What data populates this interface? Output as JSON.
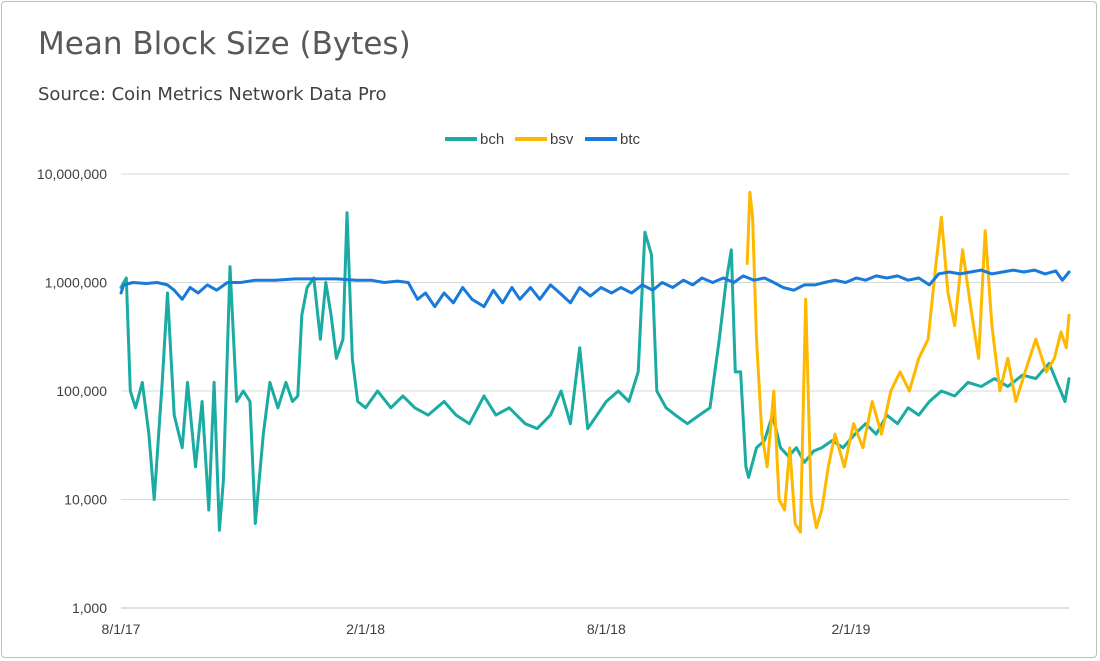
{
  "chart_data": {
    "type": "line",
    "title": "Mean Block Size (Bytes)",
    "subtitle": "Source: Coin Metrics Network Data Pro",
    "xlabel": "",
    "ylabel": "",
    "y_scale": "log",
    "ylim": [
      1000,
      10000000
    ],
    "xlim": [
      "2017-08-01",
      "2019-07-15"
    ],
    "y_ticks": [
      1000,
      10000,
      100000,
      1000000,
      10000000
    ],
    "y_tick_labels": [
      "1,000",
      "10,000",
      "100,000",
      "1,000,000",
      "10,000,000"
    ],
    "x_ticks": [
      "2017-08-01",
      "2018-02-01",
      "2018-08-01",
      "2019-02-01"
    ],
    "x_tick_labels": [
      "8/1/17",
      "2/1/18",
      "8/1/18",
      "2/1/19"
    ],
    "grid": "horizontal",
    "legend": "top-center",
    "series": [
      {
        "name": "bch",
        "color": "#1aaba3",
        "points": [
          [
            "2017-08-01",
            900000
          ],
          [
            "2017-08-05",
            1100000
          ],
          [
            "2017-08-08",
            100000
          ],
          [
            "2017-08-12",
            70000
          ],
          [
            "2017-08-17",
            120000
          ],
          [
            "2017-08-22",
            40000
          ],
          [
            "2017-08-26",
            10000
          ],
          [
            "2017-09-01",
            120000
          ],
          [
            "2017-09-05",
            800000
          ],
          [
            "2017-09-10",
            60000
          ],
          [
            "2017-09-16",
            30000
          ],
          [
            "2017-09-20",
            120000
          ],
          [
            "2017-09-26",
            20000
          ],
          [
            "2017-10-01",
            80000
          ],
          [
            "2017-10-06",
            8000
          ],
          [
            "2017-10-10",
            120000
          ],
          [
            "2017-10-14",
            5200
          ],
          [
            "2017-10-17",
            15000
          ],
          [
            "2017-10-22",
            1400000
          ],
          [
            "2017-10-27",
            80000
          ],
          [
            "2017-11-01",
            100000
          ],
          [
            "2017-11-06",
            80000
          ],
          [
            "2017-11-10",
            6000
          ],
          [
            "2017-11-16",
            40000
          ],
          [
            "2017-11-21",
            120000
          ],
          [
            "2017-11-27",
            70000
          ],
          [
            "2017-12-03",
            120000
          ],
          [
            "2017-12-08",
            80000
          ],
          [
            "2017-12-12",
            90000
          ],
          [
            "2017-12-15",
            500000
          ],
          [
            "2017-12-19",
            900000
          ],
          [
            "2017-12-24",
            1100000
          ],
          [
            "2017-12-29",
            300000
          ],
          [
            "2018-01-02",
            1000000
          ],
          [
            "2018-01-06",
            500000
          ],
          [
            "2018-01-10",
            200000
          ],
          [
            "2018-01-15",
            300000
          ],
          [
            "2018-01-18",
            4400000
          ],
          [
            "2018-01-22",
            200000
          ],
          [
            "2018-01-26",
            80000
          ],
          [
            "2018-02-01",
            70000
          ],
          [
            "2018-02-10",
            100000
          ],
          [
            "2018-02-20",
            70000
          ],
          [
            "2018-03-01",
            90000
          ],
          [
            "2018-03-10",
            70000
          ],
          [
            "2018-03-20",
            60000
          ],
          [
            "2018-04-01",
            80000
          ],
          [
            "2018-04-10",
            60000
          ],
          [
            "2018-04-20",
            50000
          ],
          [
            "2018-05-01",
            90000
          ],
          [
            "2018-05-10",
            60000
          ],
          [
            "2018-05-20",
            70000
          ],
          [
            "2018-06-01",
            50000
          ],
          [
            "2018-06-10",
            45000
          ],
          [
            "2018-06-20",
            60000
          ],
          [
            "2018-06-28",
            100000
          ],
          [
            "2018-07-05",
            50000
          ],
          [
            "2018-07-12",
            250000
          ],
          [
            "2018-07-18",
            45000
          ],
          [
            "2018-07-25",
            60000
          ],
          [
            "2018-08-01",
            80000
          ],
          [
            "2018-08-10",
            100000
          ],
          [
            "2018-08-18",
            80000
          ],
          [
            "2018-08-25",
            150000
          ],
          [
            "2018-08-30",
            2900000
          ],
          [
            "2018-09-04",
            1800000
          ],
          [
            "2018-09-08",
            100000
          ],
          [
            "2018-09-15",
            70000
          ],
          [
            "2018-09-22",
            60000
          ],
          [
            "2018-10-01",
            50000
          ],
          [
            "2018-10-10",
            60000
          ],
          [
            "2018-10-18",
            70000
          ],
          [
            "2018-10-25",
            300000
          ],
          [
            "2018-10-30",
            1000000
          ],
          [
            "2018-11-03",
            2000000
          ],
          [
            "2018-11-06",
            150000
          ],
          [
            "2018-11-10",
            150000
          ],
          [
            "2018-11-14",
            20000
          ],
          [
            "2018-11-16",
            16000
          ],
          [
            "2018-11-22",
            30000
          ],
          [
            "2018-11-28",
            35000
          ],
          [
            "2018-12-04",
            60000
          ],
          [
            "2018-12-10",
            30000
          ],
          [
            "2018-12-16",
            25000
          ],
          [
            "2018-12-22",
            30000
          ],
          [
            "2018-12-28",
            22000
          ],
          [
            "2019-01-04",
            28000
          ],
          [
            "2019-01-10",
            30000
          ],
          [
            "2019-01-18",
            35000
          ],
          [
            "2019-01-26",
            30000
          ],
          [
            "2019-02-04",
            40000
          ],
          [
            "2019-02-12",
            50000
          ],
          [
            "2019-02-20",
            40000
          ],
          [
            "2019-02-28",
            60000
          ],
          [
            "2019-03-08",
            50000
          ],
          [
            "2019-03-16",
            70000
          ],
          [
            "2019-03-24",
            60000
          ],
          [
            "2019-04-01",
            80000
          ],
          [
            "2019-04-10",
            100000
          ],
          [
            "2019-04-20",
            90000
          ],
          [
            "2019-04-30",
            120000
          ],
          [
            "2019-05-10",
            110000
          ],
          [
            "2019-05-20",
            130000
          ],
          [
            "2019-05-30",
            110000
          ],
          [
            "2019-06-10",
            140000
          ],
          [
            "2019-06-20",
            130000
          ],
          [
            "2019-06-30",
            180000
          ],
          [
            "2019-07-06",
            120000
          ],
          [
            "2019-07-12",
            80000
          ],
          [
            "2019-07-15",
            130000
          ]
        ]
      },
      {
        "name": "bsv",
        "color": "#ffb800",
        "points": [
          [
            "2018-11-15",
            1500000
          ],
          [
            "2018-11-17",
            6800000
          ],
          [
            "2018-11-19",
            4000000
          ],
          [
            "2018-11-22",
            300000
          ],
          [
            "2018-11-26",
            40000
          ],
          [
            "2018-11-30",
            20000
          ],
          [
            "2018-12-05",
            100000
          ],
          [
            "2018-12-09",
            10000
          ],
          [
            "2018-12-13",
            8000
          ],
          [
            "2018-12-17",
            30000
          ],
          [
            "2018-12-21",
            6000
          ],
          [
            "2018-12-25",
            5000
          ],
          [
            "2018-12-29",
            700000
          ],
          [
            "2019-01-02",
            10000
          ],
          [
            "2019-01-06",
            5500
          ],
          [
            "2019-01-10",
            8000
          ],
          [
            "2019-01-15",
            20000
          ],
          [
            "2019-01-20",
            40000
          ],
          [
            "2019-01-27",
            20000
          ],
          [
            "2019-02-03",
            50000
          ],
          [
            "2019-02-10",
            30000
          ],
          [
            "2019-02-17",
            80000
          ],
          [
            "2019-02-24",
            40000
          ],
          [
            "2019-03-03",
            100000
          ],
          [
            "2019-03-10",
            150000
          ],
          [
            "2019-03-17",
            100000
          ],
          [
            "2019-03-24",
            200000
          ],
          [
            "2019-03-31",
            300000
          ],
          [
            "2019-04-06",
            1500000
          ],
          [
            "2019-04-10",
            4000000
          ],
          [
            "2019-04-15",
            800000
          ],
          [
            "2019-04-20",
            400000
          ],
          [
            "2019-04-26",
            2000000
          ],
          [
            "2019-05-02",
            600000
          ],
          [
            "2019-05-08",
            200000
          ],
          [
            "2019-05-13",
            3000000
          ],
          [
            "2019-05-18",
            400000
          ],
          [
            "2019-05-24",
            100000
          ],
          [
            "2019-05-30",
            200000
          ],
          [
            "2019-06-05",
            80000
          ],
          [
            "2019-06-12",
            150000
          ],
          [
            "2019-06-20",
            300000
          ],
          [
            "2019-06-28",
            150000
          ],
          [
            "2019-07-04",
            200000
          ],
          [
            "2019-07-09",
            350000
          ],
          [
            "2019-07-13",
            250000
          ],
          [
            "2019-07-15",
            500000
          ]
        ]
      },
      {
        "name": "btc",
        "color": "#1a7ad9",
        "points": [
          [
            "2017-08-01",
            800000
          ],
          [
            "2017-08-03",
            950000
          ],
          [
            "2017-08-10",
            1000000
          ],
          [
            "2017-08-20",
            980000
          ],
          [
            "2017-08-28",
            1000000
          ],
          [
            "2017-09-05",
            950000
          ],
          [
            "2017-09-10",
            850000
          ],
          [
            "2017-09-16",
            700000
          ],
          [
            "2017-09-22",
            900000
          ],
          [
            "2017-09-28",
            800000
          ],
          [
            "2017-10-05",
            950000
          ],
          [
            "2017-10-12",
            850000
          ],
          [
            "2017-10-20",
            1000000
          ],
          [
            "2017-10-30",
            1000000
          ],
          [
            "2017-11-10",
            1050000
          ],
          [
            "2017-11-25",
            1050000
          ],
          [
            "2017-12-10",
            1080000
          ],
          [
            "2017-12-25",
            1080000
          ],
          [
            "2018-01-10",
            1080000
          ],
          [
            "2018-01-25",
            1050000
          ],
          [
            "2018-02-05",
            1050000
          ],
          [
            "2018-02-15",
            1000000
          ],
          [
            "2018-02-25",
            1030000
          ],
          [
            "2018-03-05",
            1000000
          ],
          [
            "2018-03-12",
            700000
          ],
          [
            "2018-03-18",
            800000
          ],
          [
            "2018-03-25",
            600000
          ],
          [
            "2018-04-01",
            800000
          ],
          [
            "2018-04-08",
            650000
          ],
          [
            "2018-04-15",
            900000
          ],
          [
            "2018-04-22",
            700000
          ],
          [
            "2018-05-01",
            600000
          ],
          [
            "2018-05-08",
            850000
          ],
          [
            "2018-05-15",
            650000
          ],
          [
            "2018-05-22",
            900000
          ],
          [
            "2018-05-28",
            700000
          ],
          [
            "2018-06-05",
            900000
          ],
          [
            "2018-06-12",
            700000
          ],
          [
            "2018-06-20",
            950000
          ],
          [
            "2018-06-27",
            800000
          ],
          [
            "2018-07-05",
            650000
          ],
          [
            "2018-07-12",
            900000
          ],
          [
            "2018-07-20",
            750000
          ],
          [
            "2018-07-28",
            900000
          ],
          [
            "2018-08-05",
            800000
          ],
          [
            "2018-08-12",
            900000
          ],
          [
            "2018-08-20",
            800000
          ],
          [
            "2018-08-28",
            950000
          ],
          [
            "2018-09-05",
            850000
          ],
          [
            "2018-09-12",
            1000000
          ],
          [
            "2018-09-20",
            900000
          ],
          [
            "2018-09-28",
            1050000
          ],
          [
            "2018-10-05",
            950000
          ],
          [
            "2018-10-12",
            1100000
          ],
          [
            "2018-10-20",
            1000000
          ],
          [
            "2018-10-28",
            1100000
          ],
          [
            "2018-11-05",
            1000000
          ],
          [
            "2018-11-12",
            1150000
          ],
          [
            "2018-11-20",
            1050000
          ],
          [
            "2018-11-28",
            1100000
          ],
          [
            "2018-12-05",
            1000000
          ],
          [
            "2018-12-12",
            900000
          ],
          [
            "2018-12-20",
            850000
          ],
          [
            "2018-12-28",
            950000
          ],
          [
            "2019-01-05",
            950000
          ],
          [
            "2019-01-12",
            1000000
          ],
          [
            "2019-01-20",
            1050000
          ],
          [
            "2019-01-28",
            1000000
          ],
          [
            "2019-02-05",
            1100000
          ],
          [
            "2019-02-12",
            1050000
          ],
          [
            "2019-02-20",
            1150000
          ],
          [
            "2019-02-28",
            1100000
          ],
          [
            "2019-03-08",
            1150000
          ],
          [
            "2019-03-16",
            1050000
          ],
          [
            "2019-03-24",
            1100000
          ],
          [
            "2019-04-01",
            950000
          ],
          [
            "2019-04-08",
            1200000
          ],
          [
            "2019-04-16",
            1250000
          ],
          [
            "2019-04-24",
            1200000
          ],
          [
            "2019-05-02",
            1250000
          ],
          [
            "2019-05-10",
            1300000
          ],
          [
            "2019-05-18",
            1200000
          ],
          [
            "2019-05-26",
            1250000
          ],
          [
            "2019-06-03",
            1300000
          ],
          [
            "2019-06-11",
            1250000
          ],
          [
            "2019-06-19",
            1300000
          ],
          [
            "2019-06-27",
            1200000
          ],
          [
            "2019-07-05",
            1280000
          ],
          [
            "2019-07-10",
            1050000
          ],
          [
            "2019-07-15",
            1250000
          ]
        ]
      }
    ]
  }
}
